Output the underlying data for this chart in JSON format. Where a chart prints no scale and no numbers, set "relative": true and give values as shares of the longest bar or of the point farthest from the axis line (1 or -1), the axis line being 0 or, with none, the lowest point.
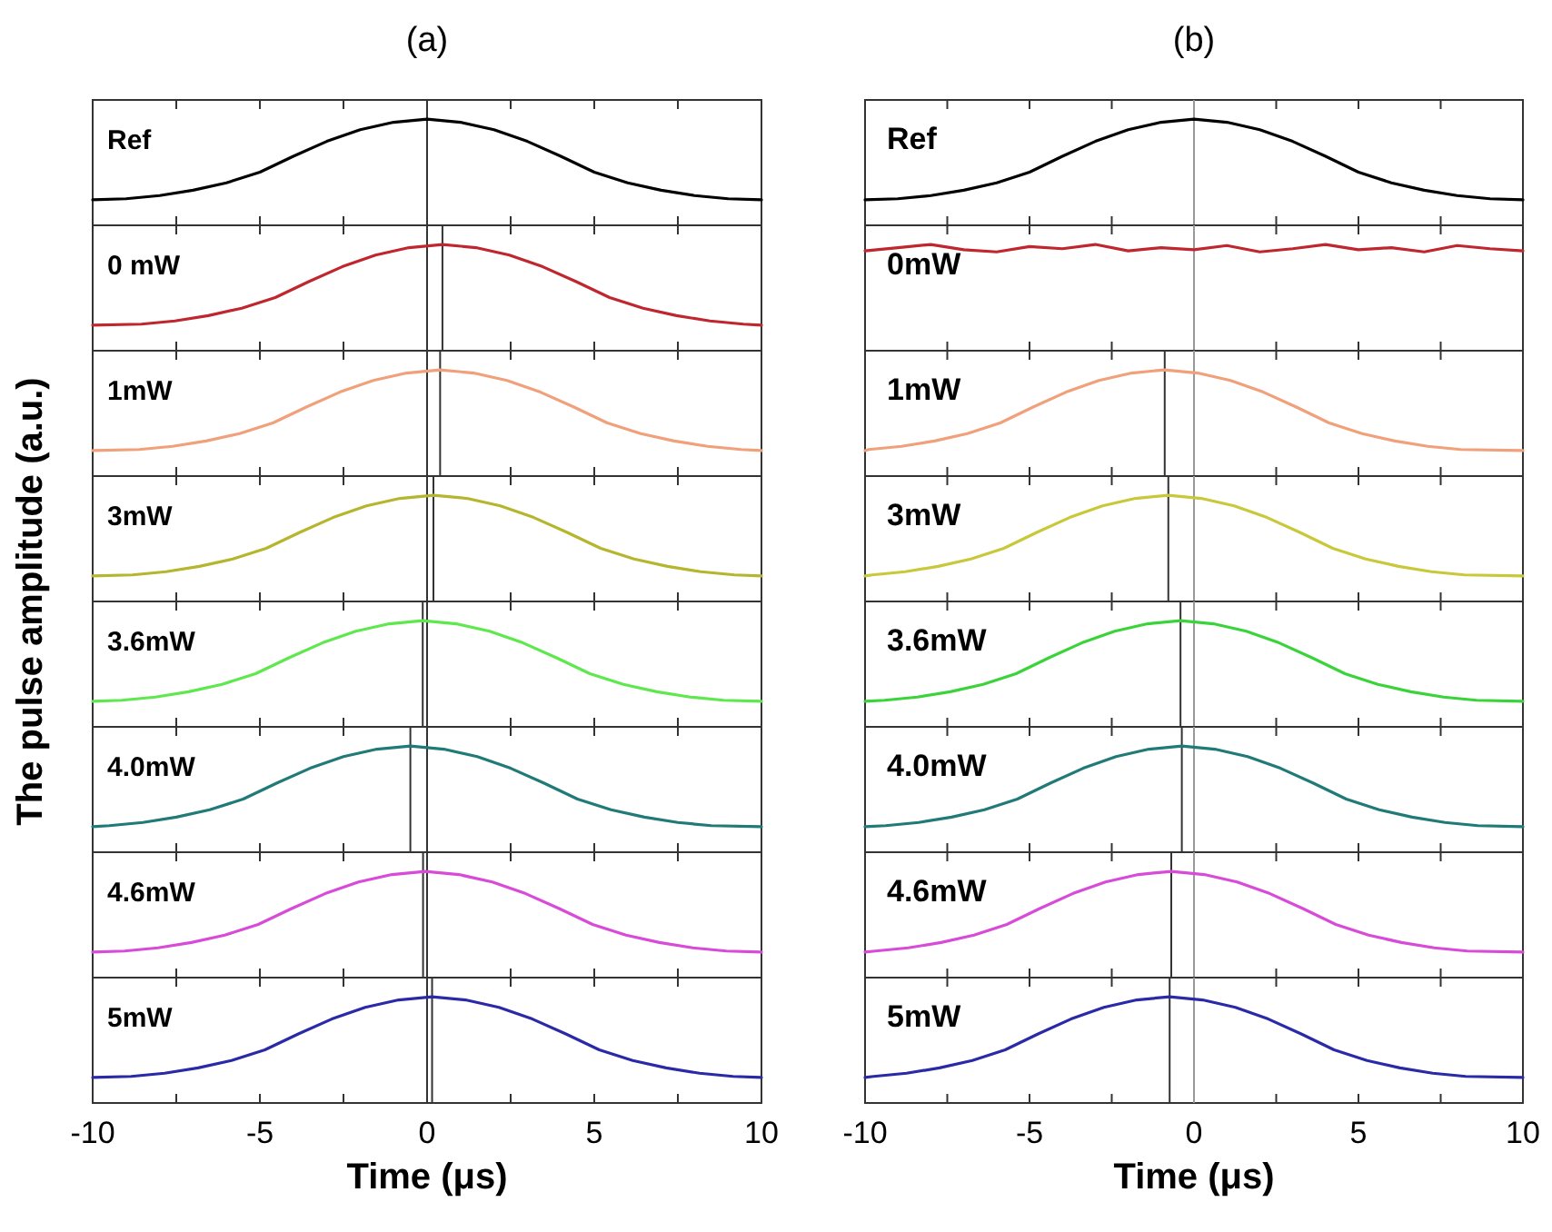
{
  "chart_data": [
    {
      "type": "line",
      "title": "(a)",
      "ylabel": "The pulse amplitude (a.u.)",
      "relative": true,
      "xlim": [
        -10,
        10
      ],
      "xticks": [
        -10,
        {
          "value": -7.5,
          "label": null
        },
        -5,
        {
          "value": -2.5,
          "label": null
        },
        0,
        {
          "value": 2.5,
          "label": null
        },
        5,
        {
          "value": 7.5,
          "label": null
        },
        10
      ],
      "tick_labels": false,
      "series": [
        {
          "name": "Ref",
          "color": "#000000",
          "x": [
            -10,
            -9,
            -8,
            -7,
            -6,
            -5,
            -4,
            -3,
            -2,
            -1,
            0,
            1,
            2,
            3,
            4,
            5,
            6,
            7,
            8,
            9,
            10
          ],
          "values": [
            0.24,
            0.25,
            0.28,
            0.33,
            0.4,
            0.5,
            0.65,
            0.79,
            0.9,
            0.97,
            1,
            0.97,
            0.9,
            0.79,
            0.65,
            0.5,
            0.4,
            0.33,
            0.28,
            0.25,
            0.24
          ]
        }
      ],
      "ref_lines": [
        {
          "axis": "x",
          "value": 0,
          "color": "#333333"
        }
      ]
    },
    {
      "type": "line",
      "relative": true,
      "xlim": [
        -10,
        10
      ],
      "xticks": [
        -10,
        {
          "value": -7.5,
          "label": null
        },
        -5,
        {
          "value": -2.5,
          "label": null
        },
        0,
        {
          "value": 2.5,
          "label": null
        },
        5,
        {
          "value": 7.5,
          "label": null
        },
        10
      ],
      "tick_labels": false,
      "series": [
        {
          "name": "0 mW",
          "color": "#c0262e",
          "x": [
            -10,
            -8.54,
            -7.54,
            -6.54,
            -5.54,
            -4.54,
            -3.54,
            -2.54,
            -1.54,
            -0.54,
            0.46,
            1.46,
            2.46,
            3.46,
            4.46,
            5.46,
            6.46,
            7.46,
            8.46,
            9.46,
            10
          ],
          "values": [
            0.24,
            0.25,
            0.28,
            0.33,
            0.4,
            0.5,
            0.65,
            0.79,
            0.9,
            0.97,
            1,
            0.97,
            0.9,
            0.79,
            0.65,
            0.5,
            0.4,
            0.33,
            0.28,
            0.25,
            0.24
          ]
        }
      ],
      "ref_lines": [
        {
          "axis": "x",
          "value": 0,
          "color": "#333333"
        },
        {
          "axis": "x",
          "value": 0.46,
          "color": "#333333"
        }
      ]
    },
    {
      "type": "line",
      "relative": true,
      "xlim": [
        -10,
        10
      ],
      "xticks": [
        -10,
        {
          "value": -7.5,
          "label": null
        },
        -5,
        {
          "value": -2.5,
          "label": null
        },
        0,
        {
          "value": 2.5,
          "label": null
        },
        5,
        {
          "value": 7.5,
          "label": null
        },
        10
      ],
      "tick_labels": false,
      "series": [
        {
          "name": "1mW",
          "color": "#f0a07a",
          "x": [
            -10,
            -8.61,
            -7.61,
            -6.61,
            -5.61,
            -4.61,
            -3.61,
            -2.61,
            -1.61,
            -0.61,
            0.39,
            1.39,
            2.39,
            3.39,
            4.39,
            5.39,
            6.39,
            7.39,
            8.39,
            9.39,
            10
          ],
          "values": [
            0.24,
            0.25,
            0.28,
            0.33,
            0.4,
            0.5,
            0.65,
            0.79,
            0.9,
            0.97,
            1,
            0.97,
            0.9,
            0.79,
            0.65,
            0.5,
            0.4,
            0.33,
            0.28,
            0.25,
            0.24
          ]
        }
      ],
      "ref_lines": [
        {
          "axis": "x",
          "value": 0,
          "color": "#333333"
        },
        {
          "axis": "x",
          "value": 0.39,
          "color": "#333333"
        }
      ]
    },
    {
      "type": "line",
      "relative": true,
      "xlim": [
        -10,
        10
      ],
      "xticks": [
        -10,
        {
          "value": -7.5,
          "label": null
        },
        -5,
        {
          "value": -2.5,
          "label": null
        },
        0,
        {
          "value": 2.5,
          "label": null
        },
        5,
        {
          "value": 7.5,
          "label": null
        },
        10
      ],
      "tick_labels": false,
      "series": [
        {
          "name": "3mW",
          "color": "#b5b52e",
          "x": [
            -10,
            -8.81,
            -7.81,
            -6.81,
            -5.81,
            -4.81,
            -3.81,
            -2.81,
            -1.81,
            -0.81,
            0.19,
            1.19,
            2.19,
            3.19,
            4.19,
            5.19,
            6.19,
            7.19,
            8.19,
            9.19,
            10
          ],
          "values": [
            0.24,
            0.25,
            0.28,
            0.33,
            0.4,
            0.5,
            0.65,
            0.79,
            0.9,
            0.97,
            1,
            0.97,
            0.9,
            0.79,
            0.65,
            0.5,
            0.4,
            0.33,
            0.28,
            0.25,
            0.24
          ]
        }
      ],
      "ref_lines": [
        {
          "axis": "x",
          "value": 0,
          "color": "#333333"
        },
        {
          "axis": "x",
          "value": 0.19,
          "color": "#333333"
        }
      ]
    },
    {
      "type": "line",
      "relative": true,
      "xlim": [
        -10,
        10
      ],
      "xticks": [
        -10,
        {
          "value": -7.5,
          "label": null
        },
        -5,
        {
          "value": -2.5,
          "label": null
        },
        0,
        {
          "value": 2.5,
          "label": null
        },
        5,
        {
          "value": 7.5,
          "label": null
        },
        10
      ],
      "tick_labels": false,
      "series": [
        {
          "name": "3.6mW",
          "color": "#5ee84e",
          "x": [
            -10,
            -9.13,
            -8.13,
            -7.13,
            -6.13,
            -5.13,
            -4.13,
            -3.13,
            -2.13,
            -1.13,
            -0.13,
            0.87,
            1.87,
            2.87,
            3.87,
            4.87,
            5.87,
            6.87,
            7.87,
            8.87,
            10
          ],
          "values": [
            0.24,
            0.25,
            0.28,
            0.33,
            0.4,
            0.5,
            0.65,
            0.79,
            0.9,
            0.97,
            1,
            0.97,
            0.9,
            0.79,
            0.65,
            0.5,
            0.4,
            0.33,
            0.28,
            0.25,
            0.24
          ]
        }
      ],
      "ref_lines": [
        {
          "axis": "x",
          "value": 0,
          "color": "#333333"
        },
        {
          "axis": "x",
          "value": -0.13,
          "color": "#333333"
        }
      ]
    },
    {
      "type": "line",
      "relative": true,
      "xlim": [
        -10,
        10
      ],
      "xticks": [
        -10,
        {
          "value": -7.5,
          "label": null
        },
        -5,
        {
          "value": -2.5,
          "label": null
        },
        0,
        {
          "value": 2.5,
          "label": null
        },
        5,
        {
          "value": 7.5,
          "label": null
        },
        10
      ],
      "tick_labels": false,
      "series": [
        {
          "name": "4.0mW",
          "color": "#1f7a78",
          "x": [
            -10,
            -9.5,
            -8.5,
            -7.5,
            -6.5,
            -5.5,
            -4.5,
            -3.5,
            -2.5,
            -1.5,
            -0.5,
            0.5,
            1.5,
            2.5,
            3.5,
            4.5,
            5.5,
            6.5,
            7.5,
            8.5,
            10
          ],
          "values": [
            0.24,
            0.25,
            0.28,
            0.33,
            0.4,
            0.5,
            0.65,
            0.79,
            0.9,
            0.97,
            1,
            0.97,
            0.9,
            0.79,
            0.65,
            0.5,
            0.4,
            0.33,
            0.28,
            0.25,
            0.24
          ]
        }
      ],
      "ref_lines": [
        {
          "axis": "x",
          "value": 0,
          "color": "#333333"
        },
        {
          "axis": "x",
          "value": -0.5,
          "color": "#333333"
        }
      ]
    },
    {
      "type": "line",
      "relative": true,
      "xlim": [
        -10,
        10
      ],
      "xticks": [
        -10,
        {
          "value": -7.5,
          "label": null
        },
        -5,
        {
          "value": -2.5,
          "label": null
        },
        0,
        {
          "value": 2.5,
          "label": null
        },
        5,
        {
          "value": 7.5,
          "label": null
        },
        10
      ],
      "tick_labels": false,
      "series": [
        {
          "name": "4.6mW",
          "color": "#d84ad8",
          "x": [
            -10,
            -9.05,
            -8.05,
            -7.05,
            -6.05,
            -5.05,
            -4.05,
            -3.05,
            -2.05,
            -1.05,
            -0.05,
            0.95,
            1.95,
            2.95,
            3.95,
            4.95,
            5.95,
            6.95,
            7.95,
            8.95,
            10
          ],
          "values": [
            0.24,
            0.25,
            0.28,
            0.33,
            0.4,
            0.5,
            0.65,
            0.79,
            0.9,
            0.97,
            1,
            0.97,
            0.9,
            0.79,
            0.65,
            0.5,
            0.4,
            0.33,
            0.28,
            0.25,
            0.24
          ]
        }
      ],
      "ref_lines": [
        {
          "axis": "x",
          "value": 0,
          "color": "#333333"
        },
        {
          "axis": "x",
          "value": -0.12,
          "color": "#333333"
        }
      ]
    },
    {
      "type": "line",
      "xlabel": "Time (μs)",
      "relative": true,
      "xlim": [
        -10,
        10
      ],
      "xticks": [
        -10,
        {
          "value": -7.5,
          "label": null
        },
        -5,
        {
          "value": -2.5,
          "label": null
        },
        0,
        {
          "value": 2.5,
          "label": null
        },
        5,
        {
          "value": 7.5,
          "label": null
        },
        10
      ],
      "tick_labels": "x",
      "series": [
        {
          "name": "5mW",
          "color": "#2a2aa8",
          "x": [
            -10,
            -8.85,
            -7.85,
            -6.85,
            -5.85,
            -4.85,
            -3.85,
            -2.85,
            -1.85,
            -0.85,
            0.15,
            1.15,
            2.15,
            3.15,
            4.15,
            5.15,
            6.15,
            7.15,
            8.15,
            9.15,
            10
          ],
          "values": [
            0.24,
            0.25,
            0.28,
            0.33,
            0.4,
            0.5,
            0.65,
            0.79,
            0.9,
            0.97,
            1,
            0.97,
            0.9,
            0.79,
            0.65,
            0.5,
            0.4,
            0.33,
            0.28,
            0.25,
            0.24
          ]
        }
      ],
      "ref_lines": [
        {
          "axis": "x",
          "value": 0,
          "color": "#333333"
        },
        {
          "axis": "x",
          "value": 0.15,
          "color": "#333333"
        }
      ]
    },
    {
      "type": "line",
      "title": "(b)",
      "relative": true,
      "xlim": [
        -10,
        10
      ],
      "xticks": [
        -10,
        {
          "value": -7.5,
          "label": null
        },
        -5,
        {
          "value": -2.5,
          "label": null
        },
        0,
        {
          "value": 2.5,
          "label": null
        },
        5,
        {
          "value": 7.5,
          "label": null
        },
        10
      ],
      "tick_labels": false,
      "series": [
        {
          "name": "Ref",
          "color": "#000000",
          "x": [
            -10,
            -9,
            -8,
            -7,
            -6,
            -5,
            -4,
            -3,
            -2,
            -1,
            0,
            1,
            2,
            3,
            4,
            5,
            6,
            7,
            8,
            9,
            10
          ],
          "values": [
            0.24,
            0.25,
            0.28,
            0.33,
            0.4,
            0.5,
            0.65,
            0.79,
            0.9,
            0.97,
            1,
            0.97,
            0.9,
            0.79,
            0.65,
            0.5,
            0.4,
            0.33,
            0.28,
            0.25,
            0.24
          ]
        }
      ],
      "ref_lines": [
        {
          "axis": "x",
          "value": 0,
          "color": "#999999"
        }
      ]
    },
    {
      "type": "line",
      "relative": true,
      "xlim": [
        -10,
        10
      ],
      "xticks": [
        -10,
        {
          "value": -7.5,
          "label": null
        },
        -5,
        {
          "value": -2.5,
          "label": null
        },
        0,
        {
          "value": 2.5,
          "label": null
        },
        5,
        {
          "value": 7.5,
          "label": null
        },
        10
      ],
      "tick_labels": false,
      "series": [
        {
          "name": "0mW",
          "color": "#c0262e",
          "x": [
            -10,
            -9,
            -8,
            -7,
            -6,
            -5,
            -4,
            -3,
            -2,
            -1,
            0,
            1,
            2,
            3,
            4,
            5,
            6,
            7,
            8,
            9,
            10
          ],
          "values": [
            0.94,
            0.97,
            1,
            0.95,
            0.93,
            0.98,
            0.96,
            1,
            0.94,
            0.97,
            0.95,
            0.99,
            0.93,
            0.96,
            1,
            0.95,
            0.97,
            0.93,
            0.99,
            0.96,
            0.94
          ]
        }
      ],
      "ref_lines": [
        {
          "axis": "x",
          "value": 0,
          "color": "#999999"
        }
      ]
    },
    {
      "type": "line",
      "relative": true,
      "xlim": [
        -10,
        10
      ],
      "xticks": [
        -10,
        {
          "value": -7.5,
          "label": null
        },
        -5,
        {
          "value": -2.5,
          "label": null
        },
        0,
        {
          "value": 2.5,
          "label": null
        },
        5,
        {
          "value": 7.5,
          "label": null
        },
        10
      ],
      "tick_labels": false,
      "series": [
        {
          "name": "1mW",
          "color": "#f0a07a",
          "x": [
            -10,
            -9.89,
            -8.89,
            -7.89,
            -6.89,
            -5.89,
            -4.89,
            -3.89,
            -2.89,
            -1.89,
            -0.89,
            0.11,
            1.11,
            2.11,
            3.11,
            4.11,
            5.11,
            6.11,
            7.11,
            8.11,
            10
          ],
          "values": [
            0.24,
            0.25,
            0.28,
            0.33,
            0.4,
            0.5,
            0.65,
            0.79,
            0.9,
            0.97,
            1,
            0.97,
            0.9,
            0.79,
            0.65,
            0.5,
            0.4,
            0.33,
            0.28,
            0.25,
            0.24
          ]
        }
      ],
      "ref_lines": [
        {
          "axis": "x",
          "value": 0,
          "color": "#999999"
        },
        {
          "axis": "x",
          "value": -0.89,
          "color": "#333333"
        }
      ]
    },
    {
      "type": "line",
      "relative": true,
      "xlim": [
        -10,
        10
      ],
      "xticks": [
        -10,
        {
          "value": -7.5,
          "label": null
        },
        -5,
        {
          "value": -2.5,
          "label": null
        },
        0,
        {
          "value": 2.5,
          "label": null
        },
        5,
        {
          "value": 7.5,
          "label": null
        },
        10
      ],
      "tick_labels": false,
      "series": [
        {
          "name": "3mW",
          "color": "#c8c83a",
          "x": [
            -10,
            -9.78,
            -8.78,
            -7.78,
            -6.78,
            -5.78,
            -4.78,
            -3.78,
            -2.78,
            -1.78,
            -0.78,
            0.22,
            1.22,
            2.22,
            3.22,
            4.22,
            5.22,
            6.22,
            7.22,
            8.22,
            10
          ],
          "values": [
            0.24,
            0.25,
            0.28,
            0.33,
            0.4,
            0.5,
            0.65,
            0.79,
            0.9,
            0.97,
            1,
            0.97,
            0.9,
            0.79,
            0.65,
            0.5,
            0.4,
            0.33,
            0.28,
            0.25,
            0.24
          ]
        }
      ],
      "ref_lines": [
        {
          "axis": "x",
          "value": 0,
          "color": "#999999"
        },
        {
          "axis": "x",
          "value": -0.78,
          "color": "#333333"
        }
      ]
    },
    {
      "type": "line",
      "relative": true,
      "xlim": [
        -10,
        10
      ],
      "xticks": [
        -10,
        {
          "value": -7.5,
          "label": null
        },
        -5,
        {
          "value": -2.5,
          "label": null
        },
        0,
        {
          "value": 2.5,
          "label": null
        },
        5,
        {
          "value": 7.5,
          "label": null
        },
        10
      ],
      "tick_labels": false,
      "series": [
        {
          "name": "3.6mW",
          "color": "#3ad43a",
          "x": [
            -10,
            -9.41,
            -8.41,
            -7.41,
            -6.41,
            -5.41,
            -4.41,
            -3.41,
            -2.41,
            -1.41,
            -0.41,
            0.59,
            1.59,
            2.59,
            3.59,
            4.59,
            5.59,
            6.59,
            7.59,
            8.59,
            10
          ],
          "values": [
            0.24,
            0.25,
            0.28,
            0.33,
            0.4,
            0.5,
            0.65,
            0.79,
            0.9,
            0.97,
            1,
            0.97,
            0.9,
            0.79,
            0.65,
            0.5,
            0.4,
            0.33,
            0.28,
            0.25,
            0.24
          ]
        }
      ],
      "ref_lines": [
        {
          "axis": "x",
          "value": 0,
          "color": "#999999"
        },
        {
          "axis": "x",
          "value": -0.41,
          "color": "#333333"
        }
      ]
    },
    {
      "type": "line",
      "relative": true,
      "xlim": [
        -10,
        10
      ],
      "xticks": [
        -10,
        {
          "value": -7.5,
          "label": null
        },
        -5,
        {
          "value": -2.5,
          "label": null
        },
        0,
        {
          "value": 2.5,
          "label": null
        },
        5,
        {
          "value": 7.5,
          "label": null
        },
        10
      ],
      "tick_labels": false,
      "series": [
        {
          "name": "4.0mW",
          "color": "#1f7a78",
          "x": [
            -10,
            -9.37,
            -8.37,
            -7.37,
            -6.37,
            -5.37,
            -4.37,
            -3.37,
            -2.37,
            -1.37,
            -0.37,
            0.63,
            1.63,
            2.63,
            3.63,
            4.63,
            5.63,
            6.63,
            7.63,
            8.63,
            10
          ],
          "values": [
            0.24,
            0.25,
            0.28,
            0.33,
            0.4,
            0.5,
            0.65,
            0.79,
            0.9,
            0.97,
            1,
            0.97,
            0.9,
            0.79,
            0.65,
            0.5,
            0.4,
            0.33,
            0.28,
            0.25,
            0.24
          ]
        }
      ],
      "ref_lines": [
        {
          "axis": "x",
          "value": 0,
          "color": "#999999"
        },
        {
          "axis": "x",
          "value": -0.37,
          "color": "#333333"
        }
      ]
    },
    {
      "type": "line",
      "relative": true,
      "xlim": [
        -10,
        10
      ],
      "xticks": [
        -10,
        {
          "value": -7.5,
          "label": null
        },
        -5,
        {
          "value": -2.5,
          "label": null
        },
        0,
        {
          "value": 2.5,
          "label": null
        },
        5,
        {
          "value": 7.5,
          "label": null
        },
        10
      ],
      "tick_labels": false,
      "series": [
        {
          "name": "4.6mW",
          "color": "#d84ad8",
          "x": [
            -10,
            -9.69,
            -8.69,
            -7.69,
            -6.69,
            -5.69,
            -4.69,
            -3.69,
            -2.69,
            -1.69,
            -0.69,
            0.31,
            1.31,
            2.31,
            3.31,
            4.31,
            5.31,
            6.31,
            7.31,
            8.31,
            10
          ],
          "values": [
            0.24,
            0.25,
            0.28,
            0.33,
            0.4,
            0.5,
            0.65,
            0.79,
            0.9,
            0.97,
            1,
            0.97,
            0.9,
            0.79,
            0.65,
            0.5,
            0.4,
            0.33,
            0.28,
            0.25,
            0.24
          ]
        }
      ],
      "ref_lines": [
        {
          "axis": "x",
          "value": 0,
          "color": "#999999"
        },
        {
          "axis": "x",
          "value": -0.69,
          "color": "#333333"
        }
      ]
    },
    {
      "type": "line",
      "xlabel": "Time (μs)",
      "relative": true,
      "xlim": [
        -10,
        10
      ],
      "xticks": [
        -10,
        {
          "value": -7.5,
          "label": null
        },
        -5,
        {
          "value": -2.5,
          "label": null
        },
        0,
        {
          "value": 2.5,
          "label": null
        },
        5,
        {
          "value": 7.5,
          "label": null
        },
        10
      ],
      "tick_labels": "x",
      "series": [
        {
          "name": "5mW",
          "color": "#2a2aa8",
          "x": [
            -10,
            -9.74,
            -8.74,
            -7.74,
            -6.74,
            -5.74,
            -4.74,
            -3.74,
            -2.74,
            -1.74,
            -0.74,
            0.26,
            1.26,
            2.26,
            3.26,
            4.26,
            5.26,
            6.26,
            7.26,
            8.26,
            10
          ],
          "values": [
            0.24,
            0.25,
            0.28,
            0.33,
            0.4,
            0.5,
            0.65,
            0.79,
            0.9,
            0.97,
            1,
            0.97,
            0.9,
            0.79,
            0.65,
            0.5,
            0.4,
            0.33,
            0.28,
            0.25,
            0.24
          ]
        }
      ],
      "ref_lines": [
        {
          "axis": "x",
          "value": 0,
          "color": "#999999"
        },
        {
          "axis": "x",
          "value": -0.74,
          "color": "#333333"
        }
      ]
    }
  ]
}
